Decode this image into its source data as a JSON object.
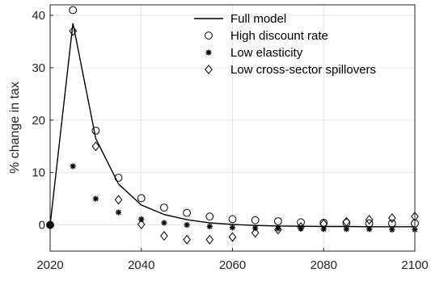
{
  "chart_data": {
    "type": "line",
    "title": "",
    "xlabel": "",
    "ylabel": "% change in tax",
    "xlim": [
      2020,
      2100
    ],
    "ylim": [
      -5,
      42
    ],
    "xticks": [
      2020,
      2040,
      2060,
      2080,
      2100
    ],
    "yticks": [
      0,
      10,
      20,
      30,
      40
    ],
    "grid": true,
    "legend": "top-right",
    "series": [
      {
        "name": "Full model",
        "marker": "line",
        "x": [
          2020,
          2025,
          2030,
          2035,
          2040,
          2045,
          2050,
          2055,
          2060,
          2065,
          2070,
          2075,
          2080,
          2085,
          2090,
          2095,
          2100
        ],
        "y": [
          0,
          38.5,
          16.5,
          7.8,
          3.8,
          2.0,
          1.0,
          0.4,
          0.1,
          -0.1,
          -0.2,
          -0.25,
          -0.3,
          -0.3,
          -0.35,
          -0.35,
          -0.35
        ]
      },
      {
        "name": "High discount rate",
        "marker": "circle",
        "x": [
          2020,
          2025,
          2030,
          2035,
          2040,
          2045,
          2050,
          2055,
          2060,
          2065,
          2070,
          2075,
          2080,
          2085,
          2090,
          2095,
          2100
        ],
        "y": [
          0,
          41.0,
          18.0,
          9.0,
          5.1,
          3.3,
          2.3,
          1.6,
          1.1,
          0.9,
          0.7,
          0.5,
          0.4,
          0.4,
          0.3,
          0.3,
          0.3
        ]
      },
      {
        "name": "Low elasticity",
        "marker": "asterisk",
        "x": [
          2020,
          2025,
          2030,
          2035,
          2040,
          2045,
          2050,
          2055,
          2060,
          2065,
          2070,
          2075,
          2080,
          2085,
          2090,
          2095,
          2100
        ],
        "y": [
          0,
          11.2,
          5.0,
          2.4,
          1.1,
          0.4,
          0.0,
          -0.3,
          -0.5,
          -0.6,
          -0.7,
          -0.7,
          -0.8,
          -0.8,
          -0.8,
          -0.9,
          -0.9
        ]
      },
      {
        "name": "Low cross-sector spillovers",
        "marker": "diamond",
        "x": [
          2020,
          2025,
          2030,
          2035,
          2040,
          2045,
          2050,
          2055,
          2060,
          2065,
          2070,
          2075,
          2080,
          2085,
          2090,
          2095,
          2100
        ],
        "y": [
          0,
          37.0,
          15.0,
          4.8,
          0.1,
          -2.1,
          -2.8,
          -2.8,
          -2.3,
          -1.5,
          -0.9,
          -0.4,
          0.2,
          0.6,
          1.0,
          1.3,
          1.6
        ]
      }
    ]
  }
}
